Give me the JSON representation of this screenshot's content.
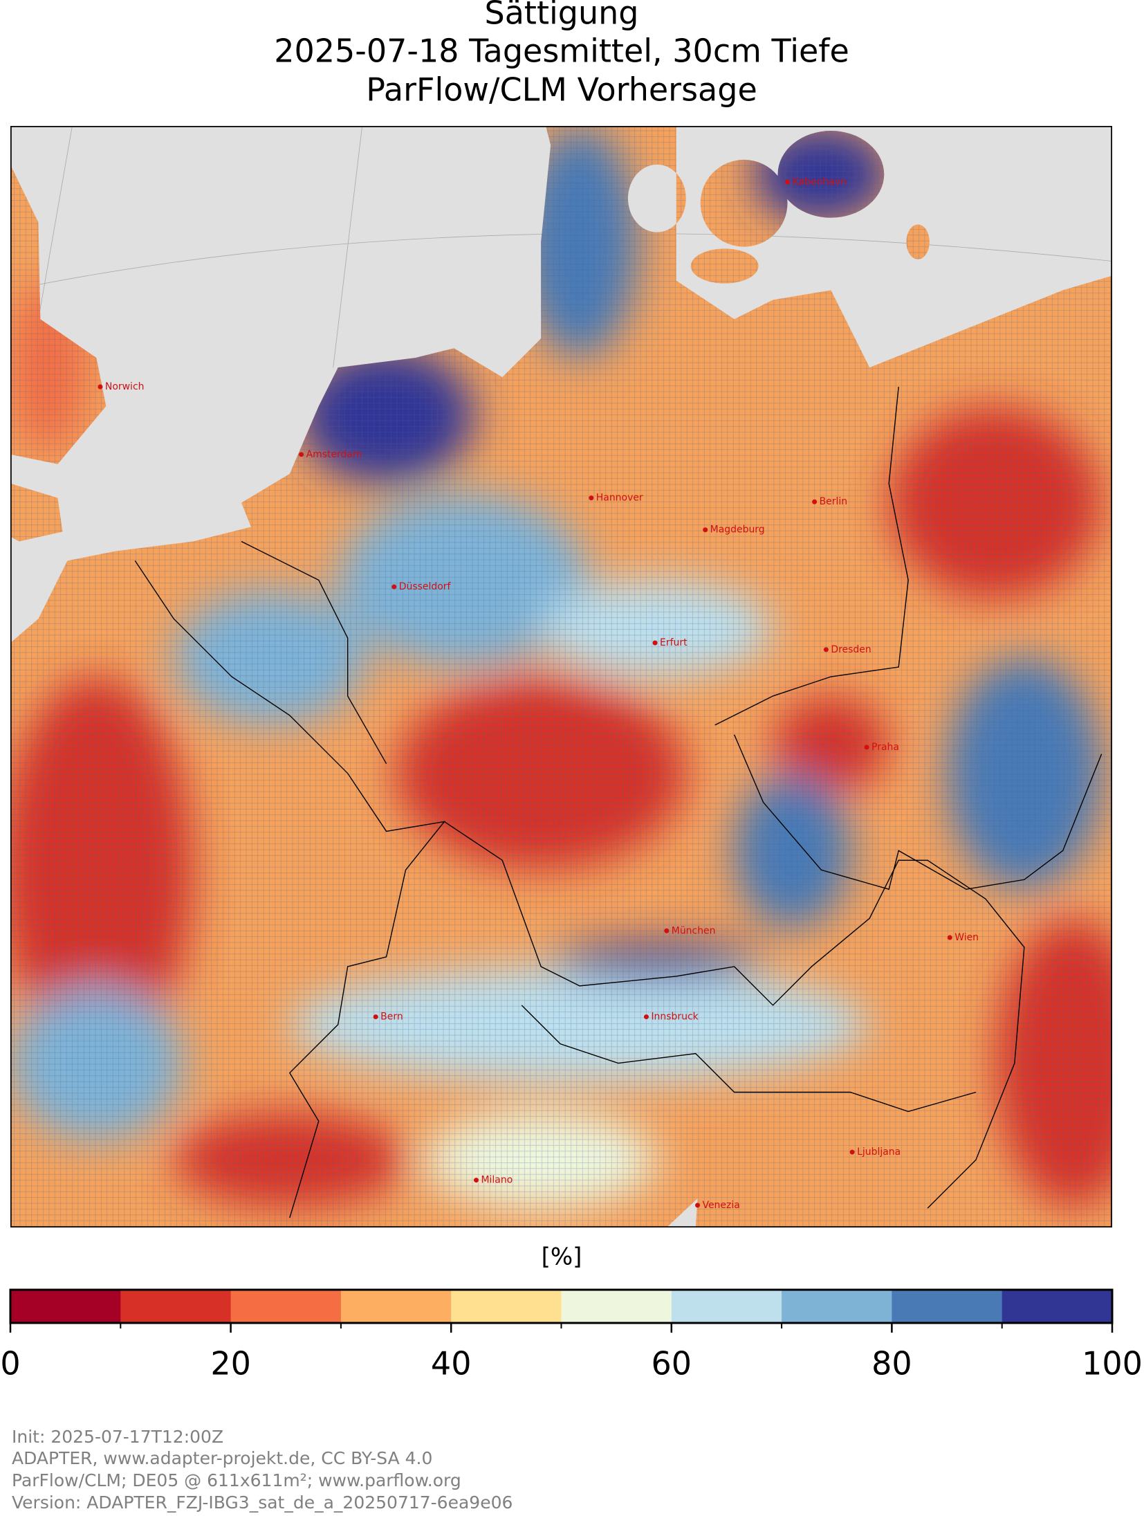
{
  "title": [
    "Sättigung",
    "2025-07-18 Tagesmittel, 30cm Tiefe",
    "ParFlow/CLM Vorhersage"
  ],
  "map": {
    "cities": [
      "Norwich",
      "Amsterdam",
      "København",
      "Hannover",
      "Berlin",
      "Magdeburg",
      "Düsseldorf",
      "Erfurt",
      "Dresden",
      "Praha",
      "München",
      "Bern",
      "Innsbruck",
      "Milano",
      "Venezia",
      "Wien",
      "Ljubljana"
    ]
  },
  "colorbar": {
    "label": "[%]",
    "clim": [
      0,
      100
    ],
    "ticks": [
      0,
      20,
      40,
      60,
      80,
      100
    ],
    "colors": [
      "#a50026",
      "#d73027",
      "#f46d43",
      "#fdae61",
      "#fee090",
      "#eef7dd",
      "#bde0ec",
      "#7fb3d5",
      "#4a7ab5",
      "#313695"
    ]
  },
  "footer": [
    "Init: 2025-07-17T12:00Z",
    "ADAPTER, www.adapter-projekt.de, CC BY-SA 4.0",
    "ParFlow/CLM; DE05 @ 611x611m²; www.parflow.org",
    "Version: ADAPTER_FZJ-IBG3_sat_de_a_20250717-6ea9e06"
  ]
}
